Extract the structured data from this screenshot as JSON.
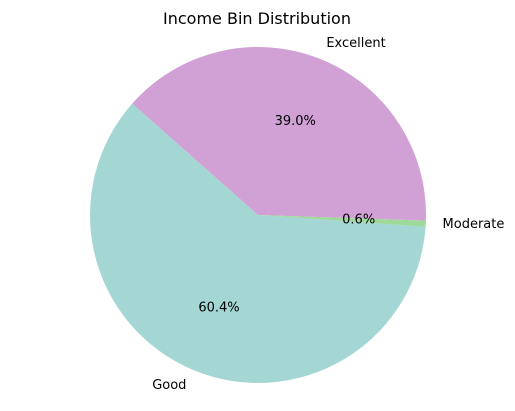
{
  "chart_data": {
    "type": "pie",
    "title": "Income Bin Distribution",
    "slices": [
      {
        "label": "Excellent",
        "value": 39.0,
        "pct_label": "39.0%",
        "color": "#d1a1d5"
      },
      {
        "label": "Good",
        "value": 60.4,
        "pct_label": "60.4%",
        "color": "#a4d7d3"
      },
      {
        "label": "Moderate",
        "value": 0.6,
        "pct_label": "0.6%",
        "color": "#9fd89b"
      }
    ]
  }
}
